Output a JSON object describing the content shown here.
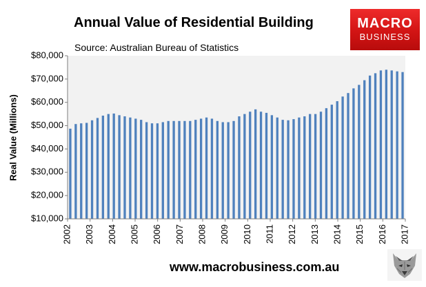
{
  "chart_data": {
    "type": "bar",
    "title": "Annual Value of Residential Building",
    "subtitle": "Source: Australian Bureau of Statistics",
    "ylabel": "Real Value (Millions)",
    "xlabel": "",
    "ylim": [
      10000,
      80000
    ],
    "yticks": [
      10000,
      20000,
      30000,
      40000,
      50000,
      60000,
      70000,
      80000
    ],
    "ytick_labels": [
      "$10,000",
      "$20,000",
      "$30,000",
      "$40,000",
      "$50,000",
      "$60,000",
      "$70,000",
      "$80,000"
    ],
    "xtick_labels": [
      "2002",
      "2003",
      "2004",
      "2005",
      "2006",
      "2007",
      "2008",
      "2009",
      "2010",
      "2011",
      "2012",
      "2013",
      "2014",
      "2015",
      "2016",
      "2017"
    ],
    "bar_color": "#4f81bd",
    "plot_background": "#f2f2f2",
    "series": [
      {
        "name": "Annual value of residential building",
        "values": [
          48700,
          50700,
          51000,
          51200,
          52300,
          53300,
          54300,
          55000,
          55200,
          54500,
          54000,
          53500,
          53000,
          52500,
          51500,
          51000,
          51000,
          51500,
          52000,
          52000,
          52000,
          52000,
          52000,
          52500,
          53000,
          53500,
          53000,
          52000,
          51500,
          51500,
          52000,
          54000,
          55000,
          56000,
          57000,
          56000,
          55500,
          54500,
          53500,
          52500,
          52300,
          52800,
          53500,
          54000,
          55000,
          55000,
          56000,
          57500,
          59000,
          60500,
          62500,
          64000,
          66000,
          67500,
          69500,
          71500,
          72500,
          73700,
          74000,
          73700,
          73300,
          73000
        ]
      }
    ]
  },
  "logo": {
    "line1": "MACRO",
    "line2": "BUSINESS"
  },
  "footer": {
    "url": "www.macrobusiness.com.au"
  },
  "emblem_icon": "wolf-head-icon"
}
